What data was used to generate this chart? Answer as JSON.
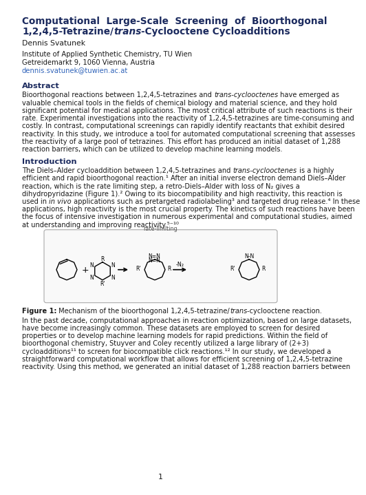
{
  "title_line1": "Computational  Large-Scale  Screening  of  Bioorthogonal",
  "title_line2_a": "1,2,4,5-Tetrazine/",
  "title_line2_b": "trans",
  "title_line2_c": "-Cyclooctene Cycloadditions",
  "author": "Dennis Svatunek",
  "affiliation1": "Institute of Applied Synthetic Chemistry, TU Wien",
  "affiliation2": "Getreidemarkt 9, 1060 Vienna, Austria",
  "email": "dennis.svatunek@tuwien.ac.at",
  "abstract_title": "Abstract",
  "intro_title": "Introduction",
  "figure_caption_bold": "Figure 1:",
  "figure_caption_rest": " Mechanism of the bioorthogonal 1,2,4,5-tetrazine/",
  "figure_caption_italic": "trans",
  "figure_caption_end": "-cyclooctene reaction.",
  "page_number": "1",
  "bg_color": "#ffffff",
  "title_color": "#1b2a5e",
  "text_color": "#1a1a1a",
  "email_color": "#3366bb",
  "section_color": "#1b2a5e",
  "abstract_lines": [
    "Bioorthogonal reactions between 1,2,4,5-tetrazines and trans-cyclooctenes have emerged as",
    "valuable chemical tools in the fields of chemical biology and material science, and they hold",
    "significant potential for medical applications. The most critical attribute of such reactions is their",
    "rate. Experimental investigations into the reactivity of 1,2,4,5-tetrazines are time-consuming and",
    "costly. In contrast, computational screenings can rapidly identify reactants that exhibit desired",
    "reactivity. In this study, we introduce a tool for automated computational screening that assesses",
    "the reactivity of a large pool of tetrazines. This effort has produced an initial dataset of 1,288",
    "reaction barriers, which can be utilized to develop machine learning models."
  ],
  "abstract_italic": [
    "trans-cyclooctenes"
  ],
  "intro_lines": [
    "The Diels–Alder cycloaddition between 1,2,4,5-tetrazines and trans-cyclooctenes is a highly",
    "efficient and rapid bioorthogonal reaction.¹ After an initial inverse electron demand Diels–Alder",
    "reaction, which is the rate limiting step, a retro-Diels–Alder with loss of N₂ gives a",
    "dihydropyridazine (Figure 1).² Owing to its biocompatibility and high reactivity, this reaction is",
    "used in in vivo applications such as pretargeted radiolabeling³ and targeted drug release.⁴ In these",
    "applications, high reactivity is the most crucial property. The kinetics of such reactions have been",
    "the focus of intensive investigation in numerous experimental and computational studies, aimed",
    "at understanding and improving reactivity.⁵⁻¹⁰"
  ],
  "intro_italic": [
    "trans-cyclooctenes",
    "in vivo"
  ],
  "body2_lines": [
    "In the past decade, computational approaches in reaction optimization, based on large datasets,",
    "have become increasingly common. These datasets are employed to screen for desired",
    "properties or to develop machine learning models for rapid predictions. Within the field of",
    "bioorthogonal chemistry, Stuyver and Coley recently utilized a large library of (2+3)",
    "cycloadditions¹¹ to screen for biocompatible click reactions.¹² In our study, we developed a",
    "straightforward computational workflow that allows for efficient screening of 1,2,4,5-tetrazine",
    "reactivity. Using this method, we generated an initial dataset of 1,288 reaction barriers between"
  ],
  "body2_italic": []
}
